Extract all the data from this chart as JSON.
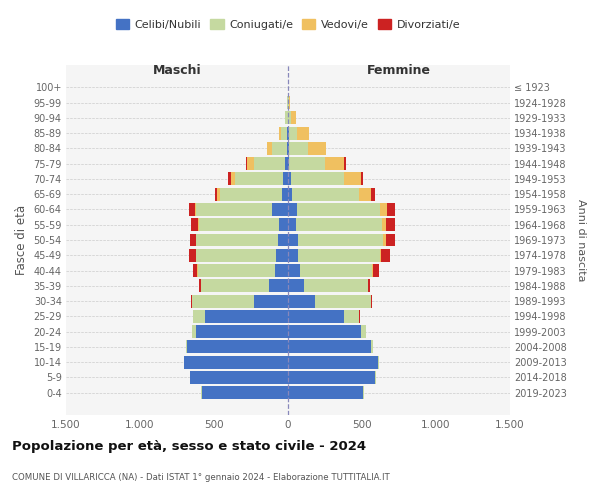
{
  "age_groups": [
    "0-4",
    "5-9",
    "10-14",
    "15-19",
    "20-24",
    "25-29",
    "30-34",
    "35-39",
    "40-44",
    "45-49",
    "50-54",
    "55-59",
    "60-64",
    "65-69",
    "70-74",
    "75-79",
    "80-84",
    "85-89",
    "90-94",
    "95-99",
    "100+"
  ],
  "birth_years": [
    "2019-2023",
    "2014-2018",
    "2009-2013",
    "2004-2008",
    "1999-2003",
    "1994-1998",
    "1989-1993",
    "1984-1988",
    "1979-1983",
    "1974-1978",
    "1969-1973",
    "1964-1968",
    "1959-1963",
    "1954-1958",
    "1949-1953",
    "1944-1948",
    "1939-1943",
    "1934-1938",
    "1929-1933",
    "1924-1928",
    "≤ 1923"
  ],
  "maschi": {
    "celibi": [
      580,
      660,
      700,
      680,
      620,
      560,
      230,
      130,
      90,
      80,
      70,
      60,
      110,
      40,
      35,
      20,
      10,
      6,
      3,
      2,
      2
    ],
    "coniugati": [
      5,
      5,
      5,
      10,
      30,
      80,
      420,
      460,
      520,
      540,
      550,
      540,
      510,
      420,
      320,
      210,
      100,
      40,
      15,
      5,
      0
    ],
    "vedovi": [
      0,
      0,
      0,
      0,
      0,
      0,
      2,
      0,
      2,
      2,
      5,
      5,
      10,
      20,
      30,
      50,
      30,
      15,
      5,
      0,
      0
    ],
    "divorziati": [
      0,
      0,
      0,
      0,
      0,
      2,
      5,
      10,
      30,
      50,
      40,
      50,
      40,
      15,
      20,
      5,
      5,
      2,
      0,
      0,
      0
    ]
  },
  "femmine": {
    "nubili": [
      510,
      590,
      610,
      560,
      490,
      380,
      180,
      110,
      80,
      70,
      70,
      55,
      60,
      30,
      20,
      10,
      5,
      4,
      2,
      2,
      2
    ],
    "coniugate": [
      5,
      5,
      5,
      15,
      40,
      100,
      380,
      430,
      490,
      550,
      570,
      580,
      560,
      450,
      360,
      240,
      130,
      55,
      20,
      5,
      0
    ],
    "vedove": [
      0,
      0,
      0,
      0,
      0,
      2,
      2,
      2,
      5,
      10,
      20,
      30,
      50,
      80,
      110,
      130,
      120,
      80,
      30,
      5,
      0
    ],
    "divorziate": [
      0,
      0,
      0,
      0,
      0,
      2,
      5,
      15,
      40,
      60,
      60,
      60,
      50,
      30,
      20,
      10,
      5,
      2,
      0,
      0,
      0
    ]
  },
  "colors": {
    "celibi_nubili": "#4472c4",
    "coniugati": "#c5d9a0",
    "vedovi": "#f0c060",
    "divorziati": "#cc2222"
  },
  "xlim": 1500,
  "title": "Popolazione per età, sesso e stato civile - 2024",
  "subtitle": "COMUNE DI VILLARICCA (NA) - Dati ISTAT 1° gennaio 2024 - Elaborazione TUTTITALIA.IT",
  "ylabel_left": "Fasce di età",
  "ylabel_right": "Anni di nascita",
  "xlabel_maschi": "Maschi",
  "xlabel_femmine": "Femmine"
}
